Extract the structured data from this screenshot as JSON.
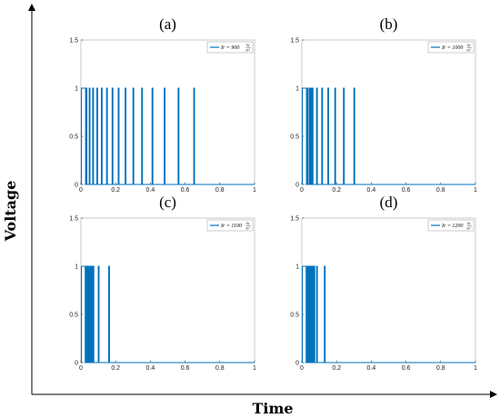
{
  "figure": {
    "xlabel": "Time",
    "ylabel": "Voltage",
    "line_color": "#0072BD"
  },
  "chart_data": [
    {
      "type": "line",
      "panel_label": "(a)",
      "legend": {
        "main": "Ir = 900",
        "unit_num": "W",
        "unit_den": "m²"
      },
      "xlim": [
        0,
        1
      ],
      "ylim": [
        0,
        1.5
      ],
      "xticks": [
        "0",
        "0.2",
        "0.4",
        "0.6",
        "0.8",
        "1"
      ],
      "yticks": [
        "0",
        "0.5",
        "1",
        "1.5"
      ],
      "grid": false,
      "legend_placement": "top-right",
      "high_interval": [
        0.003,
        0.027
      ],
      "pulses": [
        0.03,
        0.048,
        0.068,
        0.092,
        0.118,
        0.148,
        0.18,
        0.215,
        0.255,
        0.3,
        0.35,
        0.41,
        0.48,
        0.56,
        0.65
      ]
    },
    {
      "type": "line",
      "panel_label": "(b)",
      "legend": {
        "main": "Ir = 1000",
        "unit_num": "W",
        "unit_den": "m²"
      },
      "xlim": [
        0,
        1
      ],
      "ylim": [
        0,
        1.5
      ],
      "xticks": [
        "0",
        "0.2",
        "0.4",
        "0.6",
        "0.8",
        "1"
      ],
      "yticks": [
        "0",
        "0.5",
        "1",
        "1.5"
      ],
      "grid": false,
      "legend_placement": "top-right",
      "high_interval": [
        0.003,
        0.027
      ],
      "pulses": [
        0.03,
        0.042,
        0.052,
        0.06,
        0.085,
        0.115,
        0.15,
        0.19,
        0.24,
        0.3
      ]
    },
    {
      "type": "line",
      "panel_label": "(c)",
      "legend": {
        "main": "Ir = 1100",
        "unit_num": "W",
        "unit_den": "m²"
      },
      "xlim": [
        0,
        1
      ],
      "ylim": [
        0,
        1.5
      ],
      "xticks": [
        "0",
        "0.2",
        "0.4",
        "0.6",
        "0.8",
        "1"
      ],
      "yticks": [
        "0",
        "0.5",
        "1",
        "1.5"
      ],
      "grid": false,
      "legend_placement": "top-right",
      "high_interval": [
        0.003,
        0.025
      ],
      "pulses": [
        0.028,
        0.036,
        0.042,
        0.05,
        0.06,
        0.07,
        0.1,
        0.16
      ]
    },
    {
      "type": "line",
      "panel_label": "(d)",
      "legend": {
        "main": "Ir = 1200",
        "unit_num": "W",
        "unit_den": "m²"
      },
      "xlim": [
        0,
        1
      ],
      "ylim": [
        0,
        1.5
      ],
      "xticks": [
        "0",
        "0.2",
        "0.4",
        "0.6",
        "0.8",
        "1"
      ],
      "yticks": [
        "0",
        "0.5",
        "1",
        "1.5"
      ],
      "grid": false,
      "legend_placement": "top-right",
      "high_interval": [
        0.003,
        0.025
      ],
      "pulses": [
        0.03,
        0.04,
        0.048,
        0.055,
        0.062,
        0.07,
        0.085,
        0.13
      ]
    }
  ]
}
